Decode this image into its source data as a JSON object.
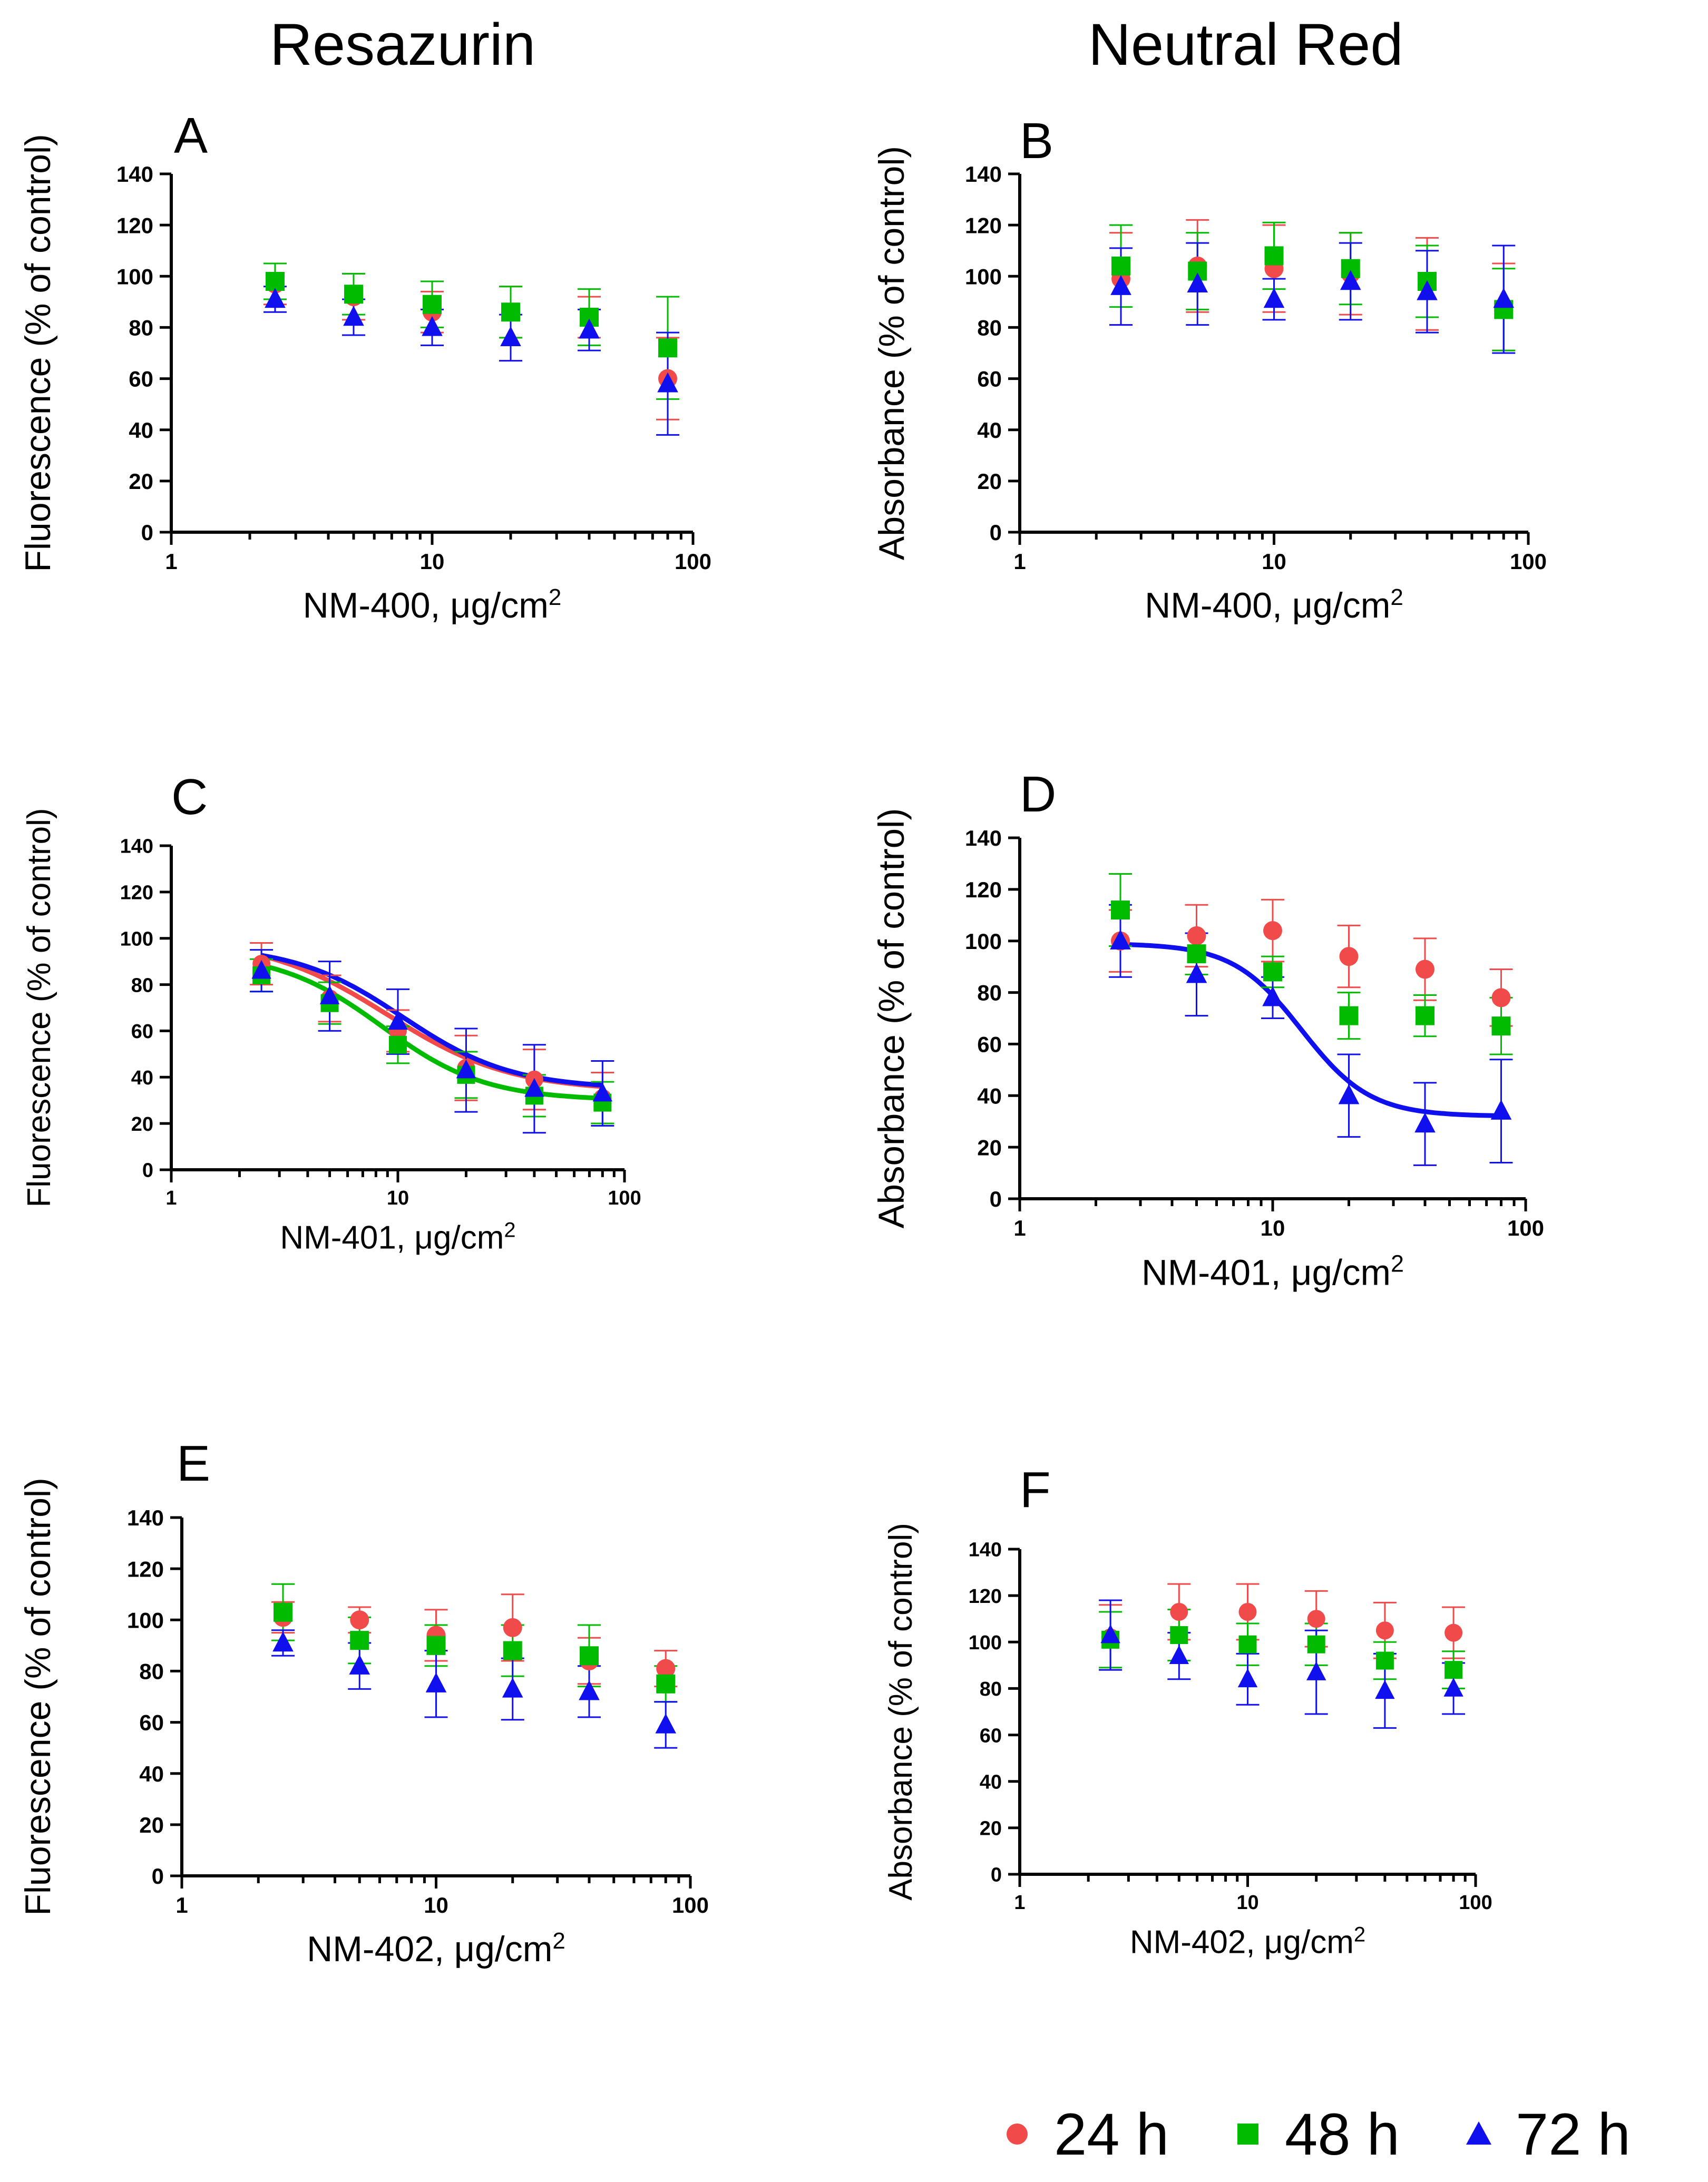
{
  "column_titles": {
    "left": "Resazurin",
    "right": "Neutral Red"
  },
  "legend": [
    {
      "label": "24 h",
      "color": "#f04a4a",
      "marker": "circle"
    },
    {
      "label": "48 h",
      "color": "#00bb00",
      "marker": "square"
    },
    {
      "label": "72 h",
      "color": "#1010ee",
      "marker": "triangle"
    }
  ],
  "series_colors": {
    "24 h": "#f04a4a",
    "48 h": "#00bb00",
    "72 h": "#1010ee"
  },
  "chart_data": [
    {
      "panel": "A",
      "type": "scatter",
      "xlabel_prefix": "NM-400, ",
      "xlabel_unit": "μg/cm",
      "xlabel_sup": "2",
      "ylabel": "Fluorescence (% of control)",
      "xscale": "log",
      "xlim": [
        1,
        100
      ],
      "xticks": [
        "1",
        "10",
        "100"
      ],
      "ylim": [
        0,
        140
      ],
      "yticks": [
        "0",
        "20",
        "40",
        "60",
        "80",
        "100",
        "120",
        "140"
      ],
      "x": [
        2.5,
        5,
        10,
        20,
        40,
        80
      ],
      "series": [
        {
          "name": "24 h",
          "values": [
            97,
            92,
            86,
            86,
            84,
            60
          ],
          "err": [
            8,
            9,
            8,
            10,
            8,
            16
          ],
          "fit": null
        },
        {
          "name": "48 h",
          "values": [
            98,
            93,
            89,
            86,
            84,
            72
          ],
          "err": [
            7,
            8,
            9,
            10,
            11,
            20
          ],
          "fit": null
        },
        {
          "name": "72 h",
          "values": [
            91,
            84,
            80,
            76,
            79,
            58
          ],
          "err": [
            5,
            7,
            7,
            9,
            8,
            20
          ],
          "fit": null
        }
      ]
    },
    {
      "panel": "B",
      "type": "scatter",
      "xlabel_prefix": "NM-400, ",
      "xlabel_unit": "μg/cm",
      "xlabel_sup": "2",
      "ylabel": "Absorbance (% of control)",
      "xscale": "log",
      "xlim": [
        1,
        100
      ],
      "xticks": [
        "1",
        "10",
        "100"
      ],
      "ylim": [
        0,
        140
      ],
      "yticks": [
        "0",
        "20",
        "40",
        "60",
        "80",
        "100",
        "120",
        "140"
      ],
      "x": [
        2.5,
        5,
        10,
        20,
        40,
        80
      ],
      "series": [
        {
          "name": "24 h",
          "values": [
            99,
            104,
            103,
            101,
            97,
            88
          ],
          "err": [
            18,
            18,
            17,
            16,
            18,
            17
          ],
          "fit": null
        },
        {
          "name": "48 h",
          "values": [
            104,
            102,
            108,
            103,
            98,
            87
          ],
          "err": [
            16,
            15,
            13,
            14,
            14,
            16
          ],
          "fit": null
        },
        {
          "name": "72 h",
          "values": [
            96,
            97,
            91,
            98,
            94,
            91
          ],
          "err": [
            15,
            16,
            8,
            15,
            16,
            21
          ],
          "fit": null
        }
      ]
    },
    {
      "panel": "C",
      "type": "scatter",
      "xlabel_prefix": "NM-401, ",
      "xlabel_unit": "μg/cm",
      "xlabel_sup": "2",
      "ylabel": "Fluorescence (% of control)",
      "xscale": "log",
      "xlim": [
        1,
        100
      ],
      "xticks": [
        "1",
        "10",
        "100"
      ],
      "ylim": [
        0,
        140
      ],
      "yticks": [
        "0",
        "20",
        "40",
        "60",
        "80",
        "100",
        "120",
        "140"
      ],
      "x": [
        2.5,
        5,
        10,
        20,
        40,
        80
      ],
      "series": [
        {
          "name": "24 h",
          "values": [
            89,
            74,
            60,
            44,
            39,
            31
          ],
          "err": [
            9,
            10,
            9,
            14,
            13,
            11
          ],
          "fit": {
            "top": 100,
            "bottom": 34,
            "ec50": 9,
            "hill": 1.6
          }
        },
        {
          "name": "48 h",
          "values": [
            84,
            72,
            54,
            41,
            32,
            29
          ],
          "err": [
            7,
            9,
            8,
            10,
            9,
            9
          ],
          "fit": {
            "top": 94,
            "bottom": 30,
            "ec50": 8.5,
            "hill": 1.9
          }
        },
        {
          "name": "72 h",
          "values": [
            86,
            75,
            64,
            43,
            35,
            33
          ],
          "err": [
            9,
            15,
            14,
            18,
            19,
            14
          ],
          "fit": {
            "top": 97,
            "bottom": 35,
            "ec50": 10.5,
            "hill": 1.8
          }
        }
      ]
    },
    {
      "panel": "D",
      "type": "scatter",
      "xlabel_prefix": "NM-401, ",
      "xlabel_unit": "μg/cm",
      "xlabel_sup": "2",
      "ylabel": "Absorbance (% of control)",
      "xscale": "log",
      "xlim": [
        1,
        100
      ],
      "xticks": [
        "1",
        "10",
        "100"
      ],
      "ylim": [
        0,
        140
      ],
      "yticks": [
        "0",
        "20",
        "40",
        "60",
        "80",
        "100",
        "120",
        "140"
      ],
      "x": [
        2.5,
        5,
        10,
        20,
        40,
        80
      ],
      "series": [
        {
          "name": "24 h",
          "values": [
            100,
            102,
            104,
            94,
            89,
            78
          ],
          "err": [
            12,
            12,
            12,
            12,
            12,
            11
          ],
          "fit": null
        },
        {
          "name": "48 h",
          "values": [
            112,
            95,
            88,
            71,
            71,
            67
          ],
          "err": [
            14,
            8,
            6,
            9,
            8,
            11
          ],
          "fit": null
        },
        {
          "name": "72 h",
          "values": [
            100,
            87,
            78,
            40,
            29,
            34
          ],
          "err": [
            14,
            16,
            8,
            16,
            16,
            20
          ],
          "fit": {
            "top": 99,
            "bottom": 32,
            "ec50": 13,
            "hill": 3.2
          }
        }
      ]
    },
    {
      "panel": "E",
      "type": "scatter",
      "xlabel_prefix": "NM-402, ",
      "xlabel_unit": "μg/cm",
      "xlabel_sup": "2",
      "ylabel": "Fluorescence (% of control)",
      "xscale": "log",
      "xlim": [
        1,
        100
      ],
      "xticks": [
        "1",
        "10",
        "100"
      ],
      "ylim": [
        0,
        140
      ],
      "yticks": [
        "0",
        "20",
        "40",
        "60",
        "80",
        "100",
        "120",
        "140"
      ],
      "x": [
        2.5,
        5,
        10,
        20,
        40,
        80
      ],
      "series": [
        {
          "name": "24 h",
          "values": [
            101,
            100,
            94,
            97,
            84,
            81
          ],
          "err": [
            6,
            5,
            10,
            13,
            9,
            7
          ],
          "fit": null
        },
        {
          "name": "48 h",
          "values": [
            103,
            92,
            90,
            88,
            86,
            75
          ],
          "err": [
            11,
            9,
            8,
            10,
            12,
            7
          ],
          "fit": null
        },
        {
          "name": "72 h",
          "values": [
            91,
            82,
            75,
            73,
            72,
            59
          ],
          "err": [
            5,
            9,
            13,
            12,
            10,
            9
          ],
          "fit": null
        }
      ]
    },
    {
      "panel": "F",
      "type": "scatter",
      "xlabel_prefix": "NM-402, ",
      "xlabel_unit": "μg/cm",
      "xlabel_sup": "2",
      "ylabel": "Absorbance (% of control)",
      "xscale": "log",
      "xlim": [
        1,
        100
      ],
      "xticks": [
        "1",
        "10",
        "100"
      ],
      "ylim": [
        0,
        140
      ],
      "yticks": [
        "0",
        "20",
        "40",
        "60",
        "80",
        "100",
        "120",
        "140"
      ],
      "x": [
        2.5,
        5,
        10,
        20,
        40,
        80
      ],
      "series": [
        {
          "name": "24 h",
          "values": [
            102,
            113,
            113,
            110,
            105,
            104
          ],
          "err": [
            14,
            12,
            12,
            12,
            12,
            11
          ],
          "fit": null
        },
        {
          "name": "48 h",
          "values": [
            101,
            103,
            99,
            99,
            92,
            88
          ],
          "err": [
            12,
            11,
            9,
            9,
            8,
            8
          ],
          "fit": null
        },
        {
          "name": "72 h",
          "values": [
            103,
            94,
            84,
            87,
            79,
            80
          ],
          "err": [
            15,
            10,
            11,
            18,
            16,
            11
          ],
          "fit": null
        }
      ]
    }
  ]
}
